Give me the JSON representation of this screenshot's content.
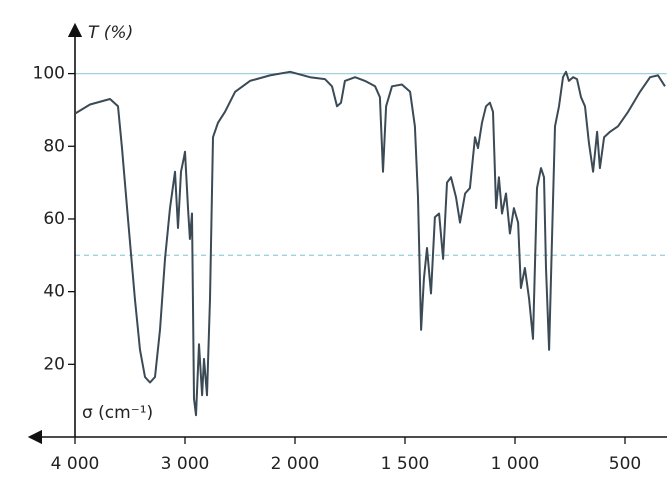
{
  "chart_data": {
    "type": "line",
    "y_label": "T (%)",
    "x_label": "σ (cm⁻¹)",
    "color": "#3b4a55",
    "reference_lines": [
      {
        "value": 100,
        "style": "solid",
        "color": "#9fd3df"
      },
      {
        "value": 50,
        "style": "dashed",
        "color": "#9fd3df"
      }
    ],
    "xlim": [
      4000,
      310
    ],
    "ylim": [
      0,
      112
    ],
    "xticks": [
      {
        "value": 4000,
        "label": "4 000"
      },
      {
        "value": 3000,
        "label": "3 000"
      },
      {
        "value": 2000,
        "label": "2 000"
      },
      {
        "value": 1500,
        "label": "1 500"
      },
      {
        "value": 1000,
        "label": "1 000"
      },
      500
    ],
    "yticks": [
      20,
      40,
      60,
      80,
      100
    ],
    "x": [
      4000,
      3864,
      3682,
      3609,
      3573,
      3518,
      3455,
      3409,
      3364,
      3318,
      3273,
      3227,
      3182,
      3136,
      3091,
      3064,
      3036,
      3009,
      3000,
      2973,
      2955,
      2936,
      2918,
      2900,
      2873,
      2845,
      2827,
      2800,
      2773,
      2745,
      2700,
      2636,
      2545,
      2409,
      2227,
      2045,
      1932,
      1864,
      1832,
      1809,
      1791,
      1773,
      1727,
      1682,
      1636,
      1614,
      1600,
      1586,
      1559,
      1514,
      1477,
      1455,
      1441,
      1427,
      1414,
      1400,
      1382,
      1364,
      1345,
      1327,
      1309,
      1291,
      1268,
      1250,
      1227,
      1205,
      1182,
      1168,
      1150,
      1132,
      1114,
      1100,
      1086,
      1073,
      1059,
      1041,
      1023,
      1005,
      986,
      973,
      955,
      936,
      918,
      900,
      882,
      868,
      859,
      845,
      832,
      818,
      800,
      782,
      768,
      755,
      736,
      718,
      700,
      682,
      664,
      645,
      627,
      614,
      595,
      568,
      532,
      486,
      432,
      386,
      350,
      318
    ],
    "values": [
      89,
      91.5,
      93,
      91,
      79.5,
      60,
      38,
      24,
      16.5,
      15,
      16.5,
      29.5,
      49,
      63,
      73,
      57.5,
      73,
      77,
      78.5,
      63,
      54.5,
      61.5,
      10.5,
      6,
      25.5,
      11.5,
      21.5,
      11.5,
      38,
      82.5,
      86.5,
      89.5,
      95,
      98,
      99.5,
      100.5,
      99,
      98.5,
      96.5,
      91,
      92,
      98,
      99,
      98,
      96.5,
      93.5,
      73,
      91,
      96.5,
      97,
      95,
      85.5,
      66,
      29.5,
      43.5,
      52,
      39.5,
      60.5,
      61.5,
      49,
      70,
      71.5,
      66,
      59,
      67,
      68.5,
      82.5,
      79.5,
      86.5,
      91,
      92,
      89.5,
      63,
      71.5,
      61.5,
      67,
      56,
      63,
      59,
      41,
      46.5,
      38,
      27,
      68.5,
      74,
      71.5,
      46.5,
      24,
      54.5,
      85.5,
      91,
      99,
      100.5,
      98,
      99,
      98.5,
      93.5,
      91,
      81,
      73,
      84,
      74,
      82.5,
      84,
      85.5,
      89.5,
      95,
      99,
      99.5,
      96.5
    ]
  }
}
